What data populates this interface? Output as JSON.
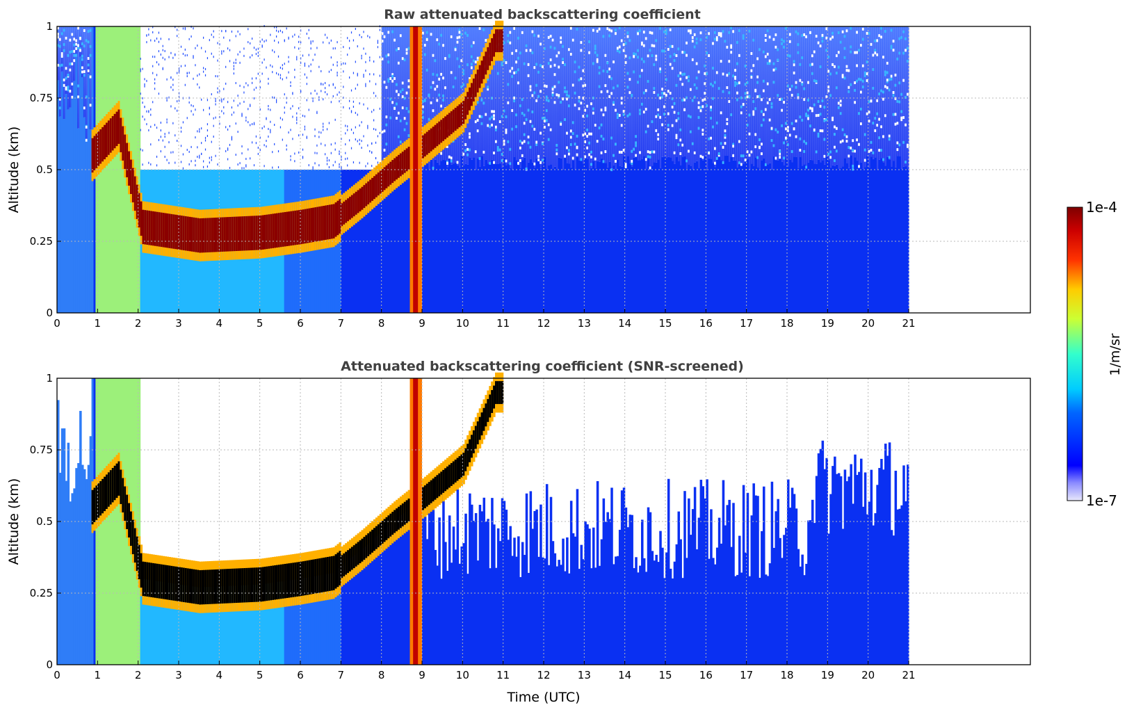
{
  "chart_data": [
    {
      "type": "heatmap",
      "title": "Raw attenuated backscattering coefficient",
      "xlabel": "",
      "ylabel": "Altitude (km)",
      "xlim": [
        0,
        24
      ],
      "ylim": [
        0,
        1
      ],
      "x_ticks": [
        "0",
        "1",
        "2",
        "3",
        "4",
        "5",
        "6",
        "7",
        "8",
        "9",
        "10",
        "11",
        "12",
        "13",
        "14",
        "15",
        "16",
        "17",
        "18",
        "19",
        "20",
        "21"
      ],
      "y_ticks": [
        "0",
        "0.25",
        "0.5",
        "0.75",
        "1"
      ],
      "grid": true,
      "data_extent_hours": [
        0,
        21
      ],
      "features": {
        "cloud_base_km": [
          [
            0.85,
            0.55
          ],
          [
            1.5,
            0.65
          ],
          [
            2.1,
            0.3
          ],
          [
            3.5,
            0.27
          ],
          [
            5.0,
            0.28
          ],
          [
            6.0,
            0.3
          ],
          [
            6.8,
            0.32
          ],
          [
            7.5,
            0.4
          ],
          [
            8.3,
            0.5
          ],
          [
            9.0,
            0.58
          ],
          [
            10.0,
            0.7
          ],
          [
            10.8,
            0.95
          ]
        ],
        "precip_columns_hours": [
          [
            0.9,
            2.0
          ],
          [
            8.7,
            9.0
          ]
        ]
      }
    },
    {
      "type": "heatmap",
      "title": "Attenuated backscattering coefficient (SNR-screened)",
      "xlabel": "Time (UTC)",
      "ylabel": "Altitude (km)",
      "xlim": [
        0,
        24
      ],
      "ylim": [
        0,
        1
      ],
      "x_ticks": [
        "0",
        "1",
        "2",
        "3",
        "4",
        "5",
        "6",
        "7",
        "8",
        "9",
        "10",
        "11",
        "12",
        "13",
        "14",
        "15",
        "16",
        "17",
        "18",
        "19",
        "20",
        "21"
      ],
      "y_ticks": [
        "0",
        "0.25",
        "0.5",
        "0.75",
        "1"
      ],
      "grid": true,
      "data_extent_hours": [
        0,
        21
      ]
    }
  ],
  "colorbar": {
    "label": "1/m/sr",
    "max_label": "1e-4",
    "min_label": "1e-7",
    "colormap": "jet"
  }
}
